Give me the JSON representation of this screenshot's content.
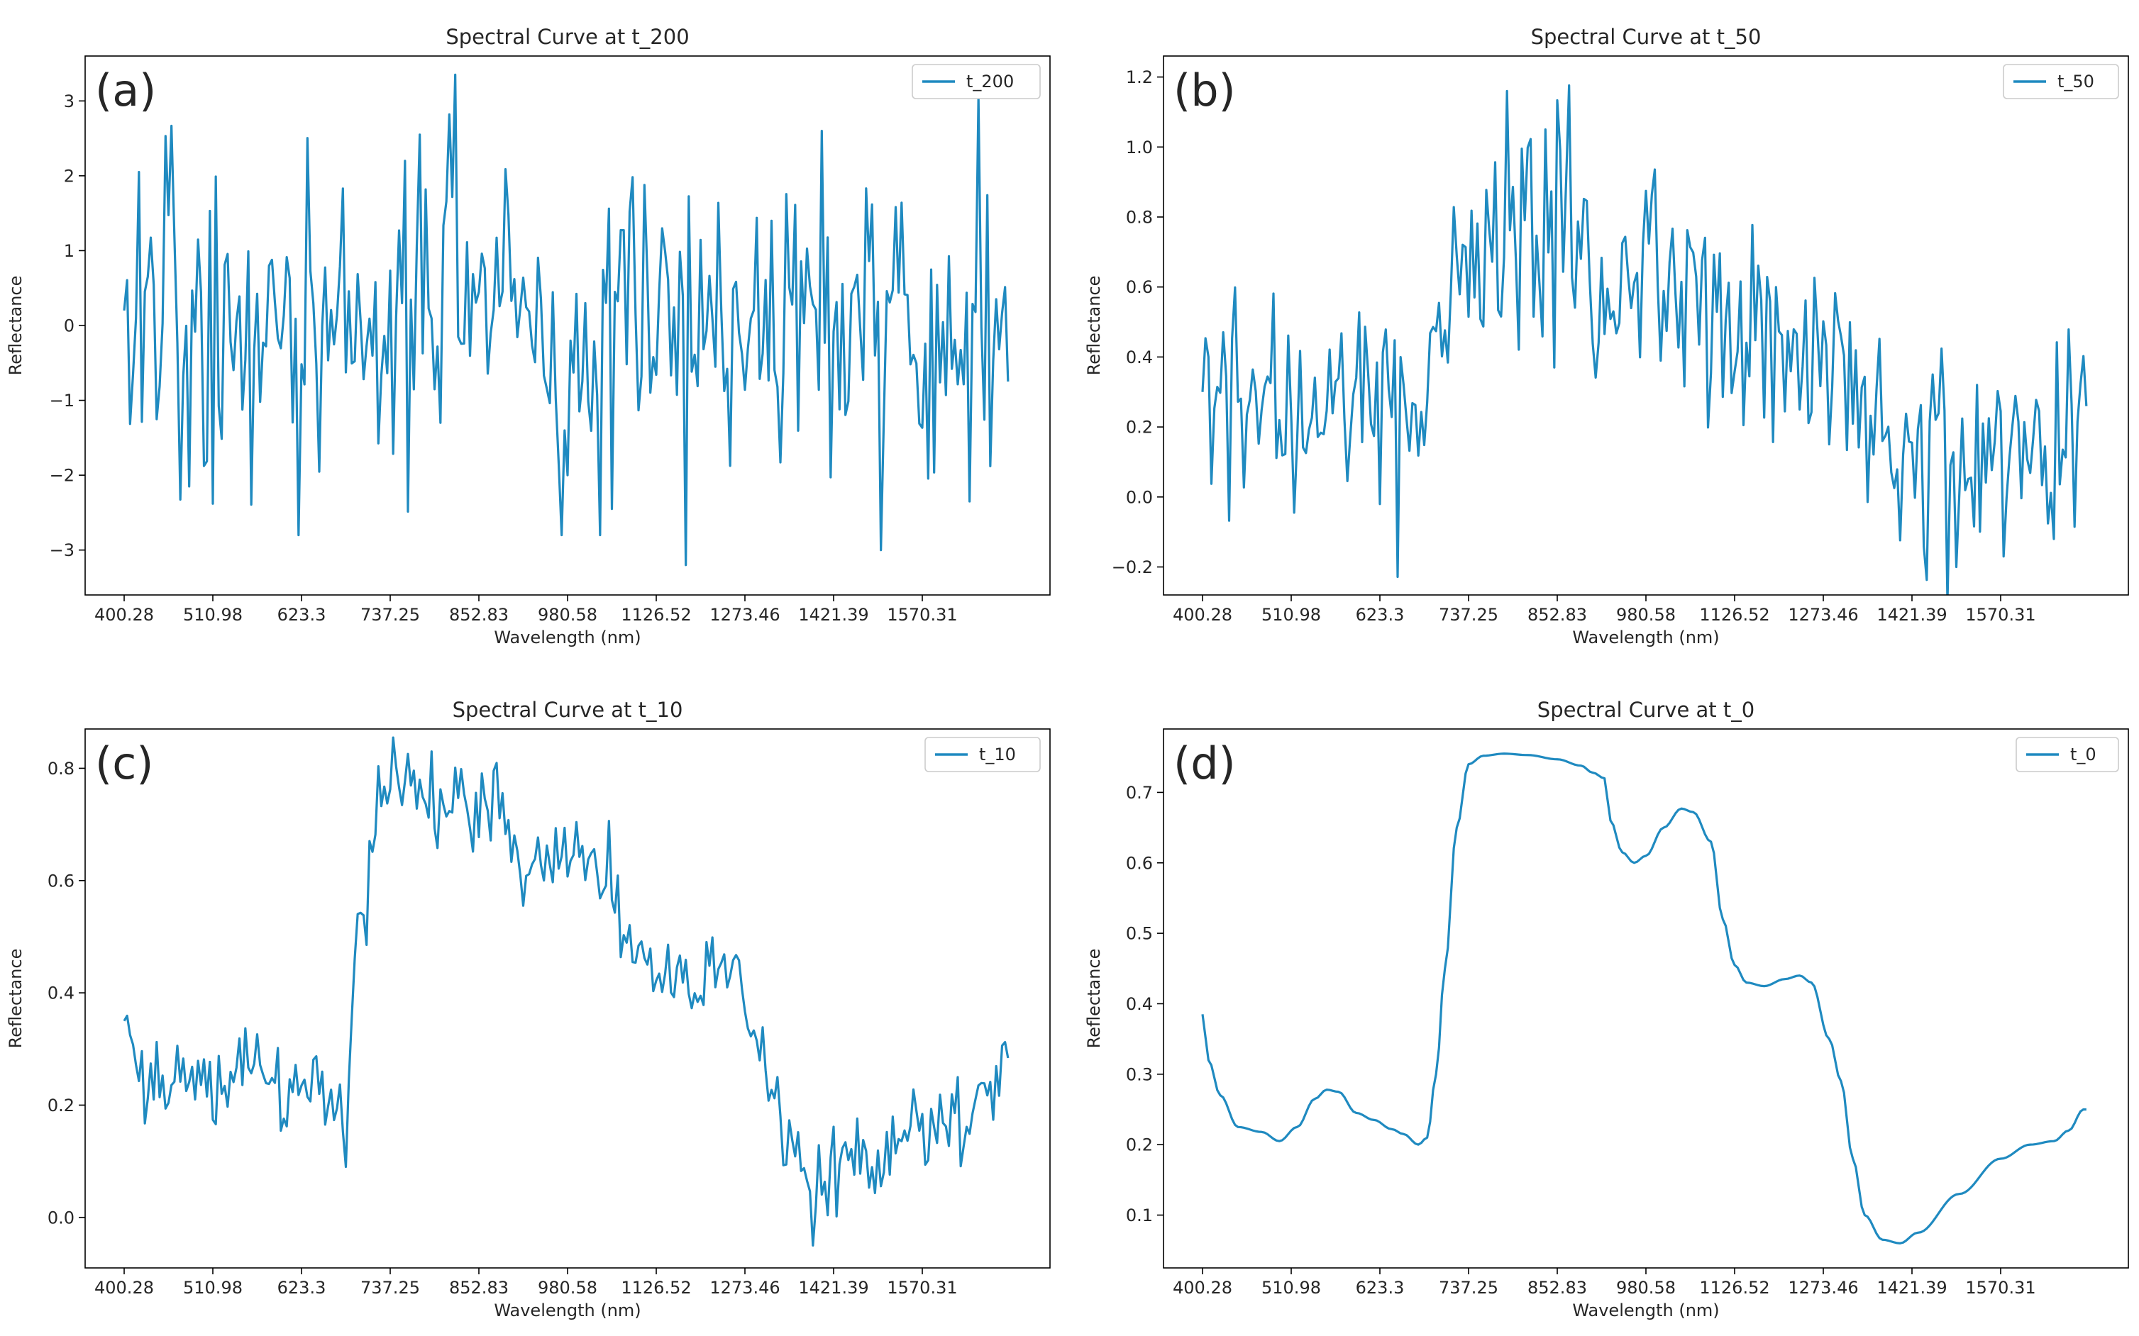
{
  "figure": {
    "xlabel": "Wavelength (nm)",
    "ylabel": "Reflectance",
    "line_color": "#1f8ac0",
    "x_tick_labels": [
      "400.28",
      "510.98",
      "623.3",
      "737.25",
      "852.83",
      "980.58",
      "1126.52",
      "1273.46",
      "1421.39",
      "1570.31"
    ]
  },
  "chart_data": [
    {
      "panel": "(a)",
      "type": "line",
      "title": "Spectral Curve at t_200",
      "legend": "t_200",
      "xlabel": "Wavelength (nm)",
      "ylabel": "Reflectance",
      "ylim": [
        -3.6,
        3.6
      ],
      "yticks": [
        -3,
        -2,
        -1,
        0,
        1,
        2,
        3
      ],
      "ytick_labels": [
        "−3",
        "−2",
        "−1",
        "0",
        "1",
        "2",
        "3"
      ],
      "x_band_ticks": [
        0,
        30,
        60,
        90,
        120,
        150,
        180,
        210,
        240,
        270
      ],
      "x_tick_labels": [
        "400.28",
        "510.98",
        "623.3",
        "737.25",
        "852.83",
        "980.58",
        "1126.52",
        "1273.46",
        "1421.39",
        "1570.31"
      ],
      "xlim": [
        -13.2,
        313.2
      ],
      "n_points": 300,
      "underlying": [
        [
          0,
          0
        ],
        [
          300,
          0
        ]
      ],
      "noise_sigma": 1.0,
      "seed": 200,
      "spikes": [
        [
          5,
          2.05
        ],
        [
          22,
          -2.15
        ],
        [
          30,
          -2.38
        ],
        [
          100,
          2.55
        ],
        [
          110,
          2.82
        ],
        [
          112,
          3.35
        ],
        [
          150,
          -2.0
        ],
        [
          165,
          -2.45
        ],
        [
          190,
          -3.2
        ],
        [
          236,
          2.6
        ],
        [
          256,
          -3.0
        ],
        [
          286,
          -2.35
        ],
        [
          289,
          3.05
        ]
      ],
      "first_value": 0.2
    },
    {
      "panel": "(b)",
      "type": "line",
      "title": "Spectral Curve at t_50",
      "legend": "t_50",
      "xlabel": "Wavelength (nm)",
      "ylabel": "Reflectance",
      "ylim": [
        -0.28,
        1.26
      ],
      "yticks": [
        -0.2,
        0.0,
        0.2,
        0.4,
        0.6,
        0.8,
        1.0,
        1.2
      ],
      "ytick_labels": [
        "−0.2",
        "0.0",
        "0.2",
        "0.4",
        "0.6",
        "0.8",
        "1.0",
        "1.2"
      ],
      "x_band_ticks": [
        0,
        30,
        60,
        90,
        120,
        150,
        180,
        210,
        240,
        270
      ],
      "x_tick_labels": [
        "400.28",
        "510.98",
        "623.3",
        "737.25",
        "852.83",
        "980.58",
        "1126.52",
        "1273.46",
        "1421.39",
        "1570.31"
      ],
      "xlim": [
        -13.2,
        313.2
      ],
      "n_points": 300,
      "underlying": [
        [
          0,
          0.38
        ],
        [
          5,
          0.27
        ],
        [
          20,
          0.22
        ],
        [
          40,
          0.25
        ],
        [
          60,
          0.23
        ],
        [
          75,
          0.2
        ],
        [
          80,
          0.55
        ],
        [
          86,
          0.74
        ],
        [
          100,
          0.75
        ],
        [
          120,
          0.74
        ],
        [
          130,
          0.72
        ],
        [
          134,
          0.6
        ],
        [
          140,
          0.6
        ],
        [
          152,
          0.67
        ],
        [
          162,
          0.62
        ],
        [
          174,
          0.46
        ],
        [
          185,
          0.43
        ],
        [
          202,
          0.44
        ],
        [
          216,
          0.32
        ],
        [
          226,
          0.12
        ],
        [
          236,
          0.06
        ],
        [
          248,
          0.09
        ],
        [
          270,
          0.17
        ],
        [
          292,
          0.2
        ],
        [
          298,
          0.25
        ]
      ],
      "noise_sigma": 0.16,
      "seed": 50,
      "spikes": [
        [
          103,
          1.16
        ],
        [
          116,
          1.05
        ],
        [
          255,
          -0.2
        ],
        [
          271,
          -0.17
        ]
      ],
      "first_value": 0.3
    },
    {
      "panel": "(c)",
      "type": "line",
      "title": "Spectral Curve at t_10",
      "legend": "t_10",
      "xlabel": "Wavelength (nm)",
      "ylabel": "Reflectance",
      "ylim": [
        -0.09,
        0.87
      ],
      "yticks": [
        0.0,
        0.2,
        0.4,
        0.6,
        0.8
      ],
      "ytick_labels": [
        "0.0",
        "0.2",
        "0.4",
        "0.6",
        "0.8"
      ],
      "x_band_ticks": [
        0,
        30,
        60,
        90,
        120,
        150,
        180,
        210,
        240,
        270
      ],
      "x_tick_labels": [
        "400.28",
        "510.98",
        "623.3",
        "737.25",
        "852.83",
        "980.58",
        "1126.52",
        "1273.46",
        "1421.39",
        "1570.31"
      ],
      "xlim": [
        -13.2,
        313.2
      ],
      "n_points": 300,
      "underlying": [
        [
          0,
          0.38
        ],
        [
          5,
          0.27
        ],
        [
          20,
          0.22
        ],
        [
          40,
          0.25
        ],
        [
          60,
          0.23
        ],
        [
          75,
          0.2
        ],
        [
          80,
          0.55
        ],
        [
          86,
          0.74
        ],
        [
          100,
          0.75
        ],
        [
          120,
          0.74
        ],
        [
          130,
          0.72
        ],
        [
          134,
          0.6
        ],
        [
          140,
          0.6
        ],
        [
          152,
          0.67
        ],
        [
          162,
          0.62
        ],
        [
          174,
          0.46
        ],
        [
          185,
          0.43
        ],
        [
          202,
          0.44
        ],
        [
          216,
          0.32
        ],
        [
          226,
          0.12
        ],
        [
          236,
          0.06
        ],
        [
          248,
          0.09
        ],
        [
          270,
          0.17
        ],
        [
          292,
          0.2
        ],
        [
          298,
          0.25
        ]
      ],
      "noise_sigma": 0.04,
      "seed": 10,
      "spikes": [
        [
          75,
          0.09
        ],
        [
          104,
          0.83
        ],
        [
          233,
          -0.05
        ]
      ],
      "first_value": 0.35
    },
    {
      "panel": "(d)",
      "type": "line",
      "title": "Spectral Curve at t_0",
      "legend": "t_0",
      "xlabel": "Wavelength (nm)",
      "ylabel": "Reflectance",
      "ylim": [
        0.025,
        0.79
      ],
      "yticks": [
        0.1,
        0.2,
        0.3,
        0.4,
        0.5,
        0.6,
        0.7
      ],
      "ytick_labels": [
        "0.1",
        "0.2",
        "0.3",
        "0.4",
        "0.5",
        "0.6",
        "0.7"
      ],
      "x_band_ticks": [
        0,
        30,
        60,
        90,
        120,
        150,
        180,
        210,
        240,
        270
      ],
      "x_tick_labels": [
        "400.28",
        "510.98",
        "623.3",
        "737.25",
        "852.83",
        "980.58",
        "1126.52",
        "1273.46",
        "1421.39",
        "1570.31"
      ],
      "xlim": [
        -13.2,
        313.2
      ],
      "n_points": 300,
      "underlying": [
        [
          0,
          0.385
        ],
        [
          2,
          0.32
        ],
        [
          6,
          0.27
        ],
        [
          12,
          0.225
        ],
        [
          20,
          0.218
        ],
        [
          26,
          0.205
        ],
        [
          32,
          0.225
        ],
        [
          38,
          0.265
        ],
        [
          42,
          0.278
        ],
        [
          46,
          0.275
        ],
        [
          52,
          0.245
        ],
        [
          58,
          0.235
        ],
        [
          64,
          0.222
        ],
        [
          68,
          0.215
        ],
        [
          73,
          0.2
        ],
        [
          76,
          0.21
        ],
        [
          79,
          0.3
        ],
        [
          82,
          0.45
        ],
        [
          86,
          0.65
        ],
        [
          90,
          0.74
        ],
        [
          95,
          0.752
        ],
        [
          102,
          0.755
        ],
        [
          110,
          0.753
        ],
        [
          120,
          0.747
        ],
        [
          128,
          0.738
        ],
        [
          132,
          0.728
        ],
        [
          136,
          0.72
        ],
        [
          138,
          0.66
        ],
        [
          142,
          0.615
        ],
        [
          146,
          0.6
        ],
        [
          150,
          0.61
        ],
        [
          156,
          0.65
        ],
        [
          162,
          0.677
        ],
        [
          166,
          0.672
        ],
        [
          172,
          0.63
        ],
        [
          176,
          0.52
        ],
        [
          180,
          0.455
        ],
        [
          184,
          0.43
        ],
        [
          190,
          0.425
        ],
        [
          197,
          0.435
        ],
        [
          202,
          0.44
        ],
        [
          206,
          0.43
        ],
        [
          212,
          0.35
        ],
        [
          216,
          0.29
        ],
        [
          220,
          0.18
        ],
        [
          224,
          0.1
        ],
        [
          230,
          0.065
        ],
        [
          236,
          0.06
        ],
        [
          242,
          0.075
        ],
        [
          256,
          0.13
        ],
        [
          270,
          0.18
        ],
        [
          280,
          0.2
        ],
        [
          288,
          0.205
        ],
        [
          293,
          0.22
        ],
        [
          298,
          0.25
        ]
      ],
      "noise_sigma": 0,
      "seed": 0,
      "spikes": [],
      "first_value": 0.385
    }
  ]
}
